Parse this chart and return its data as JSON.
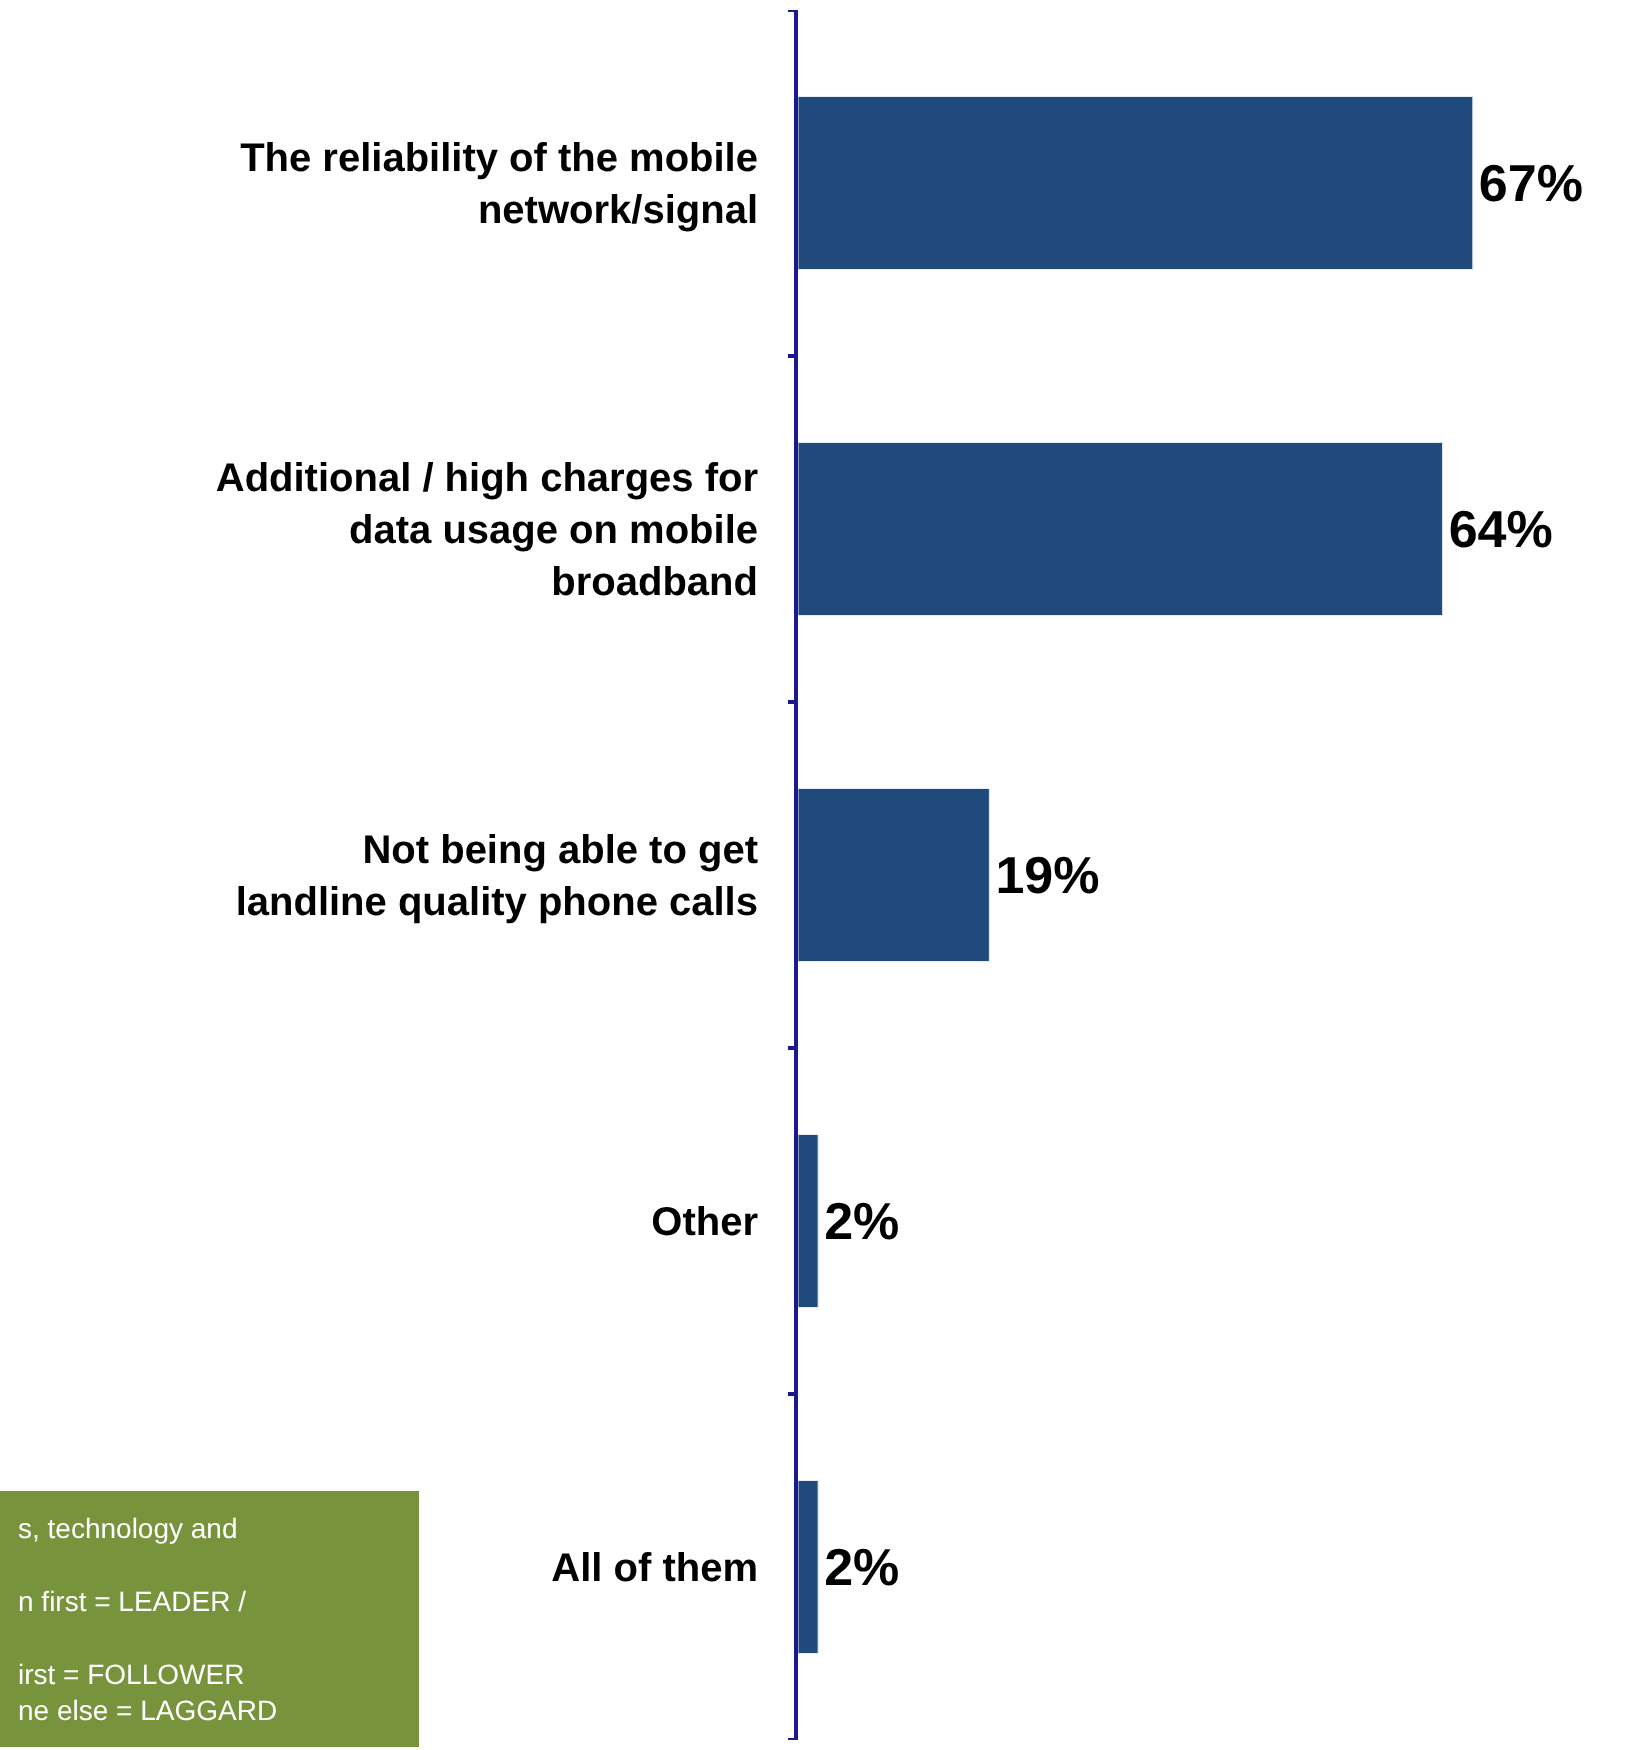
{
  "chart_data": {
    "type": "bar",
    "orientation": "horizontal",
    "categories": [
      "The reliability of the mobile network/signal",
      "Additional / high charges for data usage on mobile broadband",
      "Not being able to get landline quality phone calls",
      "Other",
      "All of them"
    ],
    "values": [
      67,
      64,
      19,
      2,
      2
    ],
    "value_labels": [
      "67%",
      "64%",
      "19%",
      "2%",
      "2%"
    ],
    "color": "#204a7c",
    "xlim": [
      0,
      83
    ],
    "tick_labels": "y",
    "annotations": [
      "s, technology and\n\nn first = LEADER /\n\nirst = FOLLOWER\nne else = LAGGARD"
    ]
  }
}
